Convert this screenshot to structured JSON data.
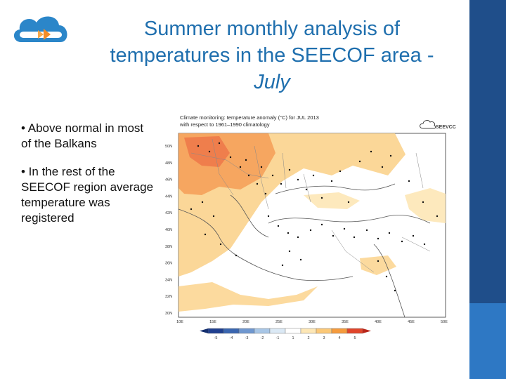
{
  "slide": {
    "title_line1": "Summer monthly analysis of",
    "title_line2": "temperatures in the SEECOF area -",
    "title_line3": "July",
    "bullets": [
      "• Above normal in most of the Balkans",
      "• In the rest of the SEECOF region average temperature was registered"
    ]
  },
  "map": {
    "caption_line1": "Climate monitoring: temperature anomaly (°C) for JUL 2013",
    "caption_line2": "with respect to 1961–1990 climatology",
    "brand": "SEEVCC",
    "lat_labels": [
      "50N",
      "48N",
      "46N",
      "44N",
      "42N",
      "40N",
      "38N",
      "36N",
      "34N",
      "32N",
      "30N"
    ],
    "lon_labels": [
      "10E",
      "15E",
      "20E",
      "25E",
      "30E",
      "35E",
      "40E",
      "45E",
      "50E"
    ],
    "colorbar_labels": [
      "-5",
      "-4",
      "-3",
      "-2",
      "-1",
      "1",
      "2",
      "3",
      "4",
      "5"
    ],
    "colorbar_colors": [
      "#1f3f8f",
      "#3a66b0",
      "#6f97cf",
      "#a8c6e6",
      "#dbe9f5",
      "#ffffff",
      "#fde7b6",
      "#fbc877",
      "#f59b3d",
      "#e0452b"
    ]
  }
}
